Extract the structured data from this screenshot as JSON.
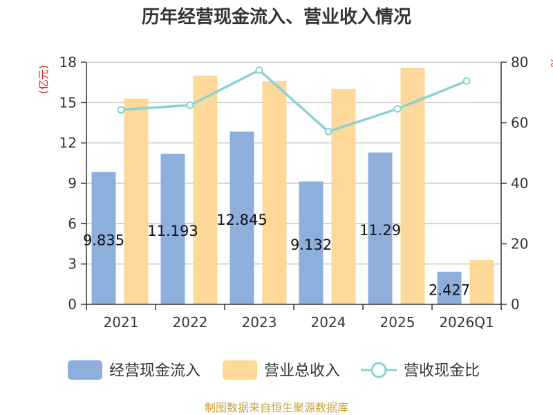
{
  "chart_data": {
    "type": "bar+line",
    "title": "历年经营现金流入、营业收入情况",
    "categories": [
      "2021",
      "2022",
      "2023",
      "2024",
      "2025",
      "2026Q1"
    ],
    "y_left": {
      "label": "(亿元)",
      "ticks": [
        0,
        3,
        6,
        9,
        12,
        15,
        18
      ],
      "range": [
        0,
        18
      ]
    },
    "y_right": {
      "label": "%",
      "ticks": [
        0,
        20,
        40,
        60,
        80
      ],
      "range": [
        0,
        80
      ]
    },
    "series": [
      {
        "name": "经营现金流入",
        "type": "bar",
        "axis": "left",
        "color": "#8eaedc",
        "values": [
          9.835,
          11.193,
          12.845,
          9.132,
          11.29,
          2.427
        ],
        "labels": [
          "9.835",
          "11.193",
          "12.845",
          "9.132",
          "11.29",
          "2.427"
        ]
      },
      {
        "name": "营业总收入",
        "type": "bar",
        "axis": "left",
        "color": "#fed898",
        "values": [
          15.3,
          17.0,
          16.6,
          16.0,
          17.6,
          3.3
        ]
      },
      {
        "name": "营收现金比",
        "type": "line",
        "axis": "right",
        "color": "#88d3d5",
        "values": [
          64.3,
          65.8,
          77.4,
          57.1,
          64.6,
          73.8
        ]
      }
    ],
    "grid": true,
    "legend": "bottom"
  },
  "footer": {
    "source": "制图数据来自恒生聚源数据库"
  },
  "colors": {
    "axis_label": "#e02020",
    "source": "#c8a040",
    "grid": "#c8c8c8"
  }
}
